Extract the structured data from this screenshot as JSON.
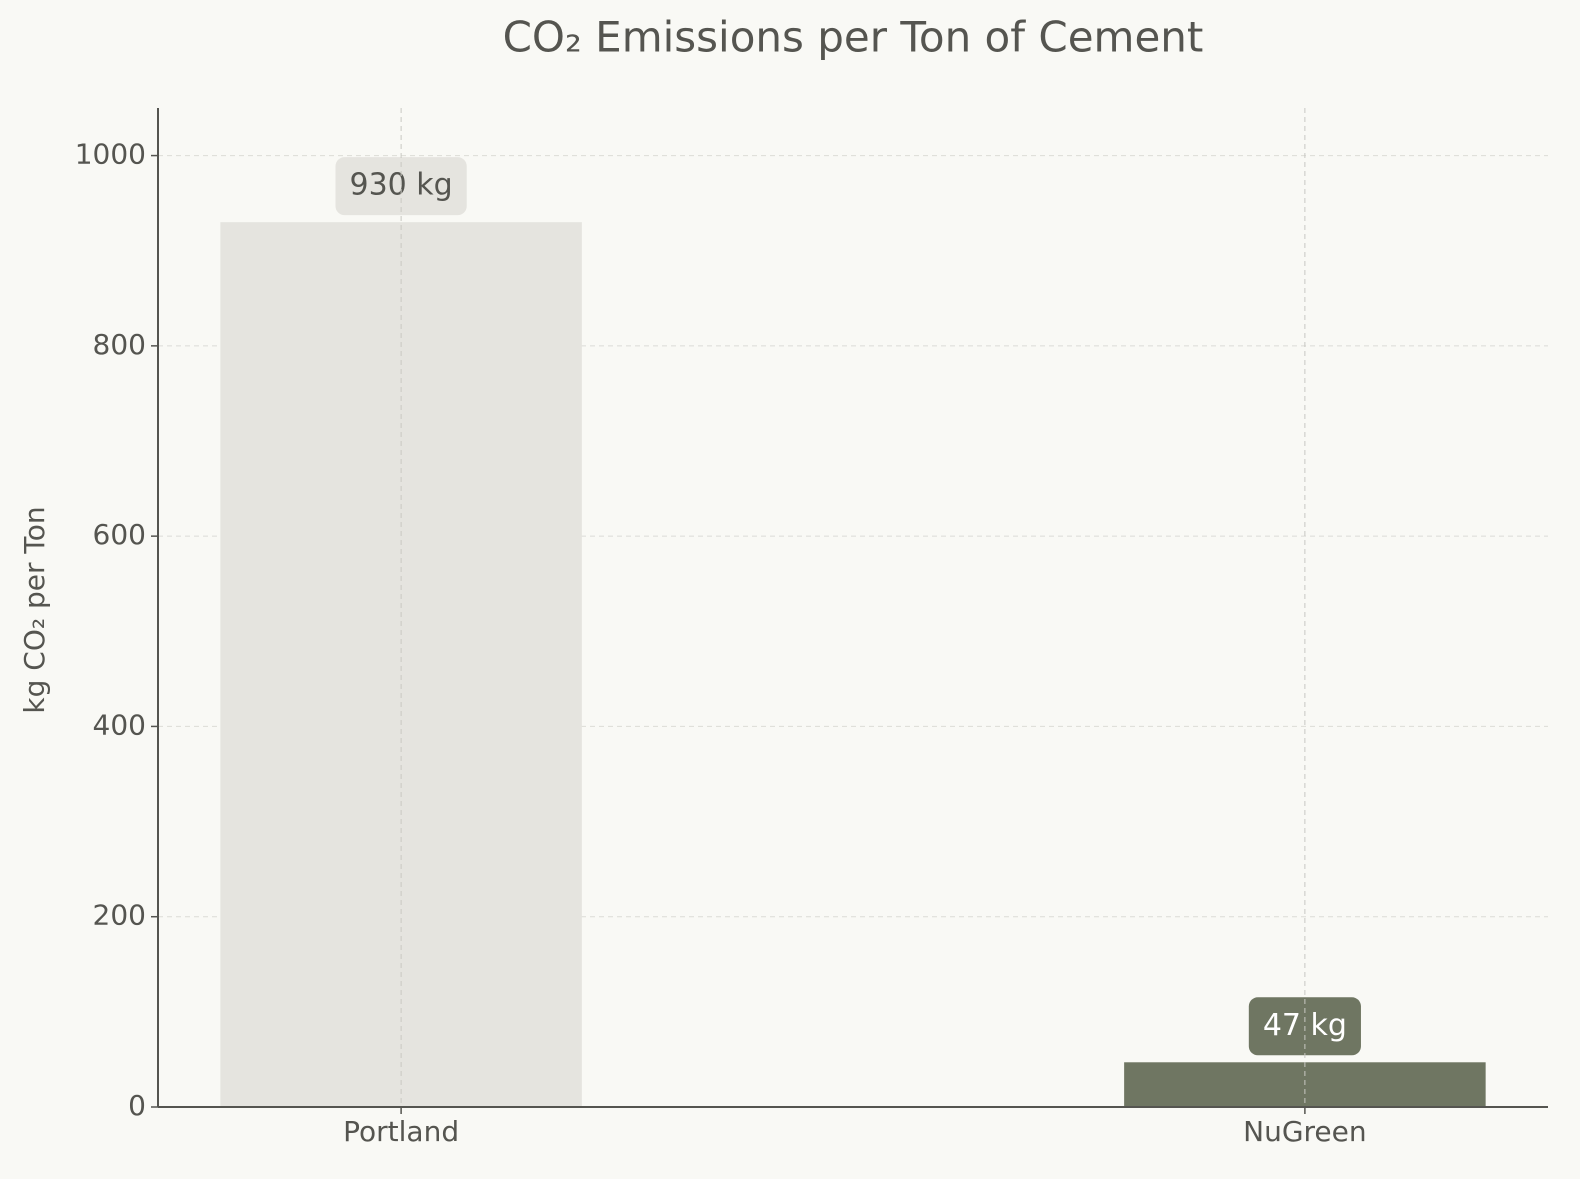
{
  "chart_data": {
    "type": "bar",
    "title": "CO₂ Emissions per Ton of Cement",
    "y_label": "kg CO₂ per Ton",
    "categories": [
      "Portland",
      "NuGreen"
    ],
    "values": [
      930,
      47
    ],
    "value_labels": [
      "930 kg",
      "47 kg"
    ],
    "colors": [
      "#e5e4df",
      "#6f7662"
    ],
    "ylim": [
      0,
      1050
    ],
    "yticks": [
      0,
      200,
      400,
      600,
      800,
      1000
    ],
    "grid": true
  }
}
